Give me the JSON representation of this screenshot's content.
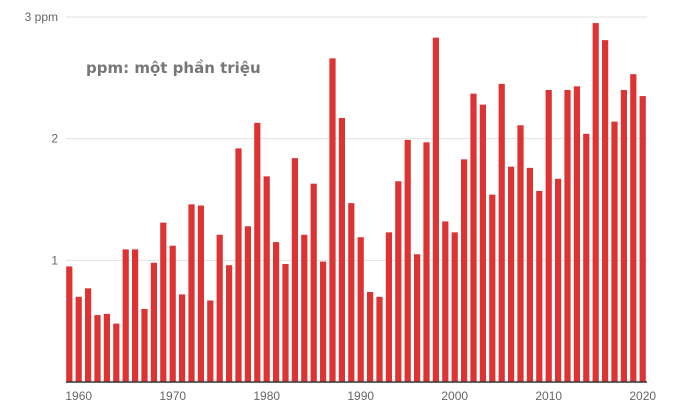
{
  "chart_data": {
    "type": "bar",
    "annotation": "ppm: một phần triệu",
    "y_tick_labels": [
      "3 ppm",
      "2",
      "1"
    ],
    "y_ticks": [
      3,
      2,
      1
    ],
    "ylim": [
      0,
      3
    ],
    "x_tick_labels": [
      "1960",
      "1970",
      "1980",
      "1990",
      "2000",
      "2010",
      "2020"
    ],
    "x_ticks": [
      1960,
      1970,
      1980,
      1990,
      2000,
      2010,
      2020
    ],
    "grid": true,
    "bar_color": "#dd3333",
    "x": [
      1959,
      1960,
      1961,
      1962,
      1963,
      1964,
      1965,
      1966,
      1967,
      1968,
      1969,
      1970,
      1971,
      1972,
      1973,
      1974,
      1975,
      1976,
      1977,
      1978,
      1979,
      1980,
      1981,
      1982,
      1983,
      1984,
      1985,
      1986,
      1987,
      1988,
      1989,
      1990,
      1991,
      1992,
      1993,
      1994,
      1995,
      1996,
      1997,
      1998,
      1999,
      2000,
      2001,
      2002,
      2003,
      2004,
      2005,
      2006,
      2007,
      2008,
      2009,
      2010,
      2011,
      2012,
      2013,
      2014,
      2015,
      2016,
      2017,
      2018,
      2019,
      2020
    ],
    "values": [
      0.95,
      0.7,
      0.77,
      0.55,
      0.56,
      0.48,
      1.09,
      1.09,
      0.6,
      0.98,
      1.31,
      1.12,
      0.72,
      1.46,
      1.45,
      0.67,
      1.21,
      0.96,
      1.92,
      1.28,
      2.13,
      1.69,
      1.15,
      0.97,
      1.84,
      1.21,
      1.63,
      0.99,
      2.66,
      2.17,
      1.47,
      1.19,
      0.74,
      0.7,
      1.23,
      1.65,
      1.99,
      1.05,
      1.97,
      2.83,
      1.32,
      1.23,
      1.83,
      2.37,
      2.28,
      1.54,
      2.45,
      1.77,
      2.11,
      1.76,
      1.57,
      2.4,
      1.67,
      2.4,
      2.43,
      2.04,
      2.95,
      2.81,
      2.14,
      2.4,
      2.53,
      2.35
    ]
  }
}
